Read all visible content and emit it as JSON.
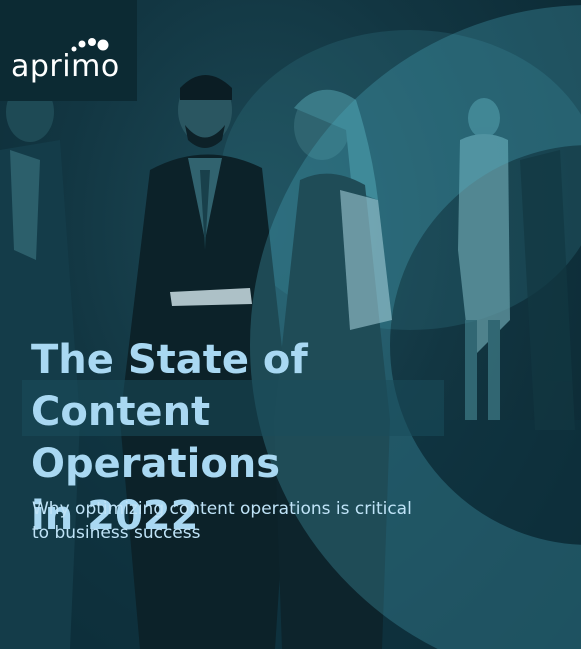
{
  "brand": {
    "logo_text": "aprimo"
  },
  "cover": {
    "title_lines": [
      "The State of",
      "Content Operations",
      "in 2022"
    ],
    "subtitle_lines": [
      "Why optimizing content operations is critical",
      "to business success"
    ]
  },
  "colors": {
    "background": "#123642",
    "title": "#a9d8f2",
    "subtitle": "#bfe3f7",
    "logo_box": "#0c2a33"
  },
  "icons": {
    "logo_mark": "dots-icon"
  }
}
